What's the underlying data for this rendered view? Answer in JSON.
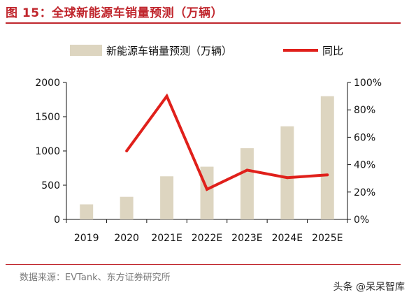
{
  "header": {
    "title": "图 15：全球新能源车销量预测（万辆）"
  },
  "footer": {
    "source": "数据来源：EVTank、东方证券研究所",
    "watermark": "头条 @呆呆智库"
  },
  "colors": {
    "bar": "#ddd5c0",
    "line": "#e0201b",
    "title": "#c0262d"
  },
  "chart_data": {
    "type": "bar+line",
    "categories": [
      "2019",
      "2020",
      "2021E",
      "2022E",
      "2023E",
      "2024E",
      "2025E"
    ],
    "series": [
      {
        "name": "新能源车销量预测（万辆）",
        "type": "bar",
        "axis": "left",
        "values": [
          220,
          330,
          630,
          770,
          1040,
          1360,
          1800
        ]
      },
      {
        "name": "同比",
        "type": "line",
        "axis": "right",
        "values": [
          null,
          50,
          90,
          22,
          36,
          30.5,
          32.5
        ]
      }
    ],
    "ylim_left": [
      0,
      2000
    ],
    "yticks_left": [
      "0",
      "500",
      "1000",
      "1500",
      "2000"
    ],
    "ylim_right": [
      0,
      100
    ],
    "yticks_right": [
      "0%",
      "20%",
      "40%",
      "60%",
      "80%",
      "100%"
    ],
    "legend_position": "top",
    "grid": false
  }
}
